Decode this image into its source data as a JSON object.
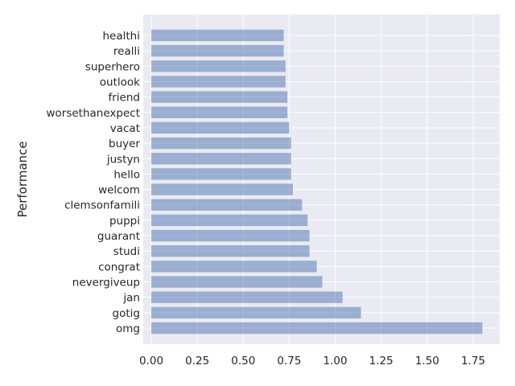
{
  "chart_data": {
    "type": "bar",
    "orientation": "horizontal",
    "title": "",
    "xlabel": "",
    "ylabel": "Performance",
    "categories": [
      "omg",
      "gotig",
      "jan",
      "nevergiveup",
      "congrat",
      "studi",
      "guarant",
      "puppi",
      "clemsonfamili",
      "welcom",
      "hello",
      "justyn",
      "buyer",
      "vacat",
      "worsethanexpect",
      "friend",
      "outlook",
      "superhero",
      "realli",
      "healthi"
    ],
    "values": [
      1.8,
      1.14,
      1.04,
      0.93,
      0.9,
      0.86,
      0.86,
      0.85,
      0.82,
      0.77,
      0.76,
      0.76,
      0.76,
      0.75,
      0.74,
      0.74,
      0.73,
      0.73,
      0.72,
      0.72
    ],
    "xlim": [
      0,
      1.9
    ],
    "x_ticks": [
      "0.00",
      "0.25",
      "0.50",
      "0.75",
      "1.00",
      "1.25",
      "1.50",
      "1.75"
    ],
    "grid": true,
    "bar_color": "#4c72b0",
    "bar_opacity": 0.5,
    "background_color": "#eaeaf2"
  }
}
